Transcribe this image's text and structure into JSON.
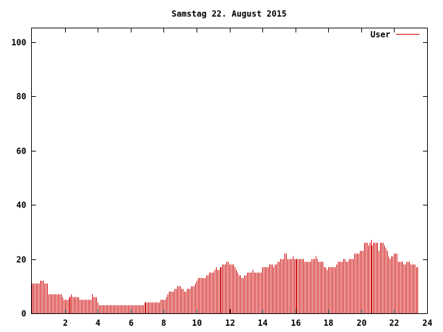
{
  "chart_data": {
    "type": "bar",
    "title": "Samstag 22. August 2015",
    "xlabel": "",
    "ylabel": "",
    "xlim": [
      0,
      24
    ],
    "ylim": [
      0,
      105
    ],
    "x_ticks": [
      2,
      4,
      6,
      8,
      10,
      12,
      14,
      16,
      18,
      20,
      22,
      24
    ],
    "y_ticks": [
      0,
      20,
      40,
      60,
      80,
      100
    ],
    "grid": false,
    "legend_position": "top-right",
    "series": [
      {
        "name": "User",
        "color": "#cc0000",
        "sample_interval_hours": 0.0833,
        "values": [
          11,
          11,
          11,
          11,
          11,
          11,
          12,
          12,
          12,
          11,
          11,
          11,
          7,
          7,
          7,
          7,
          7,
          7,
          7,
          7,
          7,
          7,
          6,
          5,
          5,
          5,
          5,
          6,
          6,
          7,
          6,
          6,
          6,
          6,
          6,
          5,
          5,
          5,
          5,
          5,
          5,
          5,
          5,
          5,
          7,
          6,
          6,
          6,
          4,
          3,
          3,
          3,
          3,
          3,
          3,
          3,
          3,
          3,
          3,
          3,
          3,
          3,
          3,
          3,
          3,
          3,
          3,
          3,
          3,
          3,
          3,
          3,
          3,
          3,
          3,
          3,
          3,
          3,
          3,
          3,
          3,
          3,
          4,
          4,
          4,
          4,
          4,
          4,
          4,
          4,
          4,
          4,
          4,
          4,
          5,
          5,
          5,
          5,
          6,
          7,
          8,
          8,
          8,
          8,
          9,
          9,
          10,
          10,
          10,
          9,
          9,
          8,
          8,
          9,
          9,
          9,
          10,
          10,
          10,
          11,
          12,
          13,
          13,
          13,
          13,
          13,
          13,
          14,
          14,
          15,
          15,
          15,
          15,
          16,
          17,
          16,
          16,
          17,
          17,
          18,
          18,
          18,
          19,
          19,
          18,
          18,
          18,
          18,
          17,
          16,
          15,
          14,
          14,
          13,
          13,
          14,
          14,
          15,
          15,
          15,
          15,
          16,
          15,
          15,
          15,
          15,
          15,
          15,
          17,
          17,
          17,
          17,
          17,
          18,
          18,
          18,
          17,
          18,
          18,
          19,
          19,
          20,
          20,
          20,
          22,
          22,
          20,
          20,
          20,
          20,
          21,
          20,
          20,
          20,
          20,
          20,
          20,
          20,
          20,
          19,
          19,
          19,
          19,
          19,
          20,
          20,
          20,
          21,
          20,
          19,
          19,
          19,
          19,
          17,
          17,
          16,
          17,
          17,
          17,
          17,
          17,
          17,
          18,
          19,
          19,
          19,
          19,
          20,
          20,
          19,
          19,
          20,
          20,
          20,
          20,
          22,
          22,
          22,
          22,
          23,
          23,
          23,
          26,
          26,
          26,
          25,
          26,
          27,
          25,
          26,
          26,
          26,
          26,
          23,
          26,
          26,
          26,
          25,
          24,
          23,
          21,
          20,
          21,
          21,
          22,
          22,
          22,
          19,
          19,
          19,
          19,
          18,
          18,
          19,
          19,
          19,
          18,
          18,
          18,
          18,
          17,
          17
        ]
      }
    ]
  }
}
